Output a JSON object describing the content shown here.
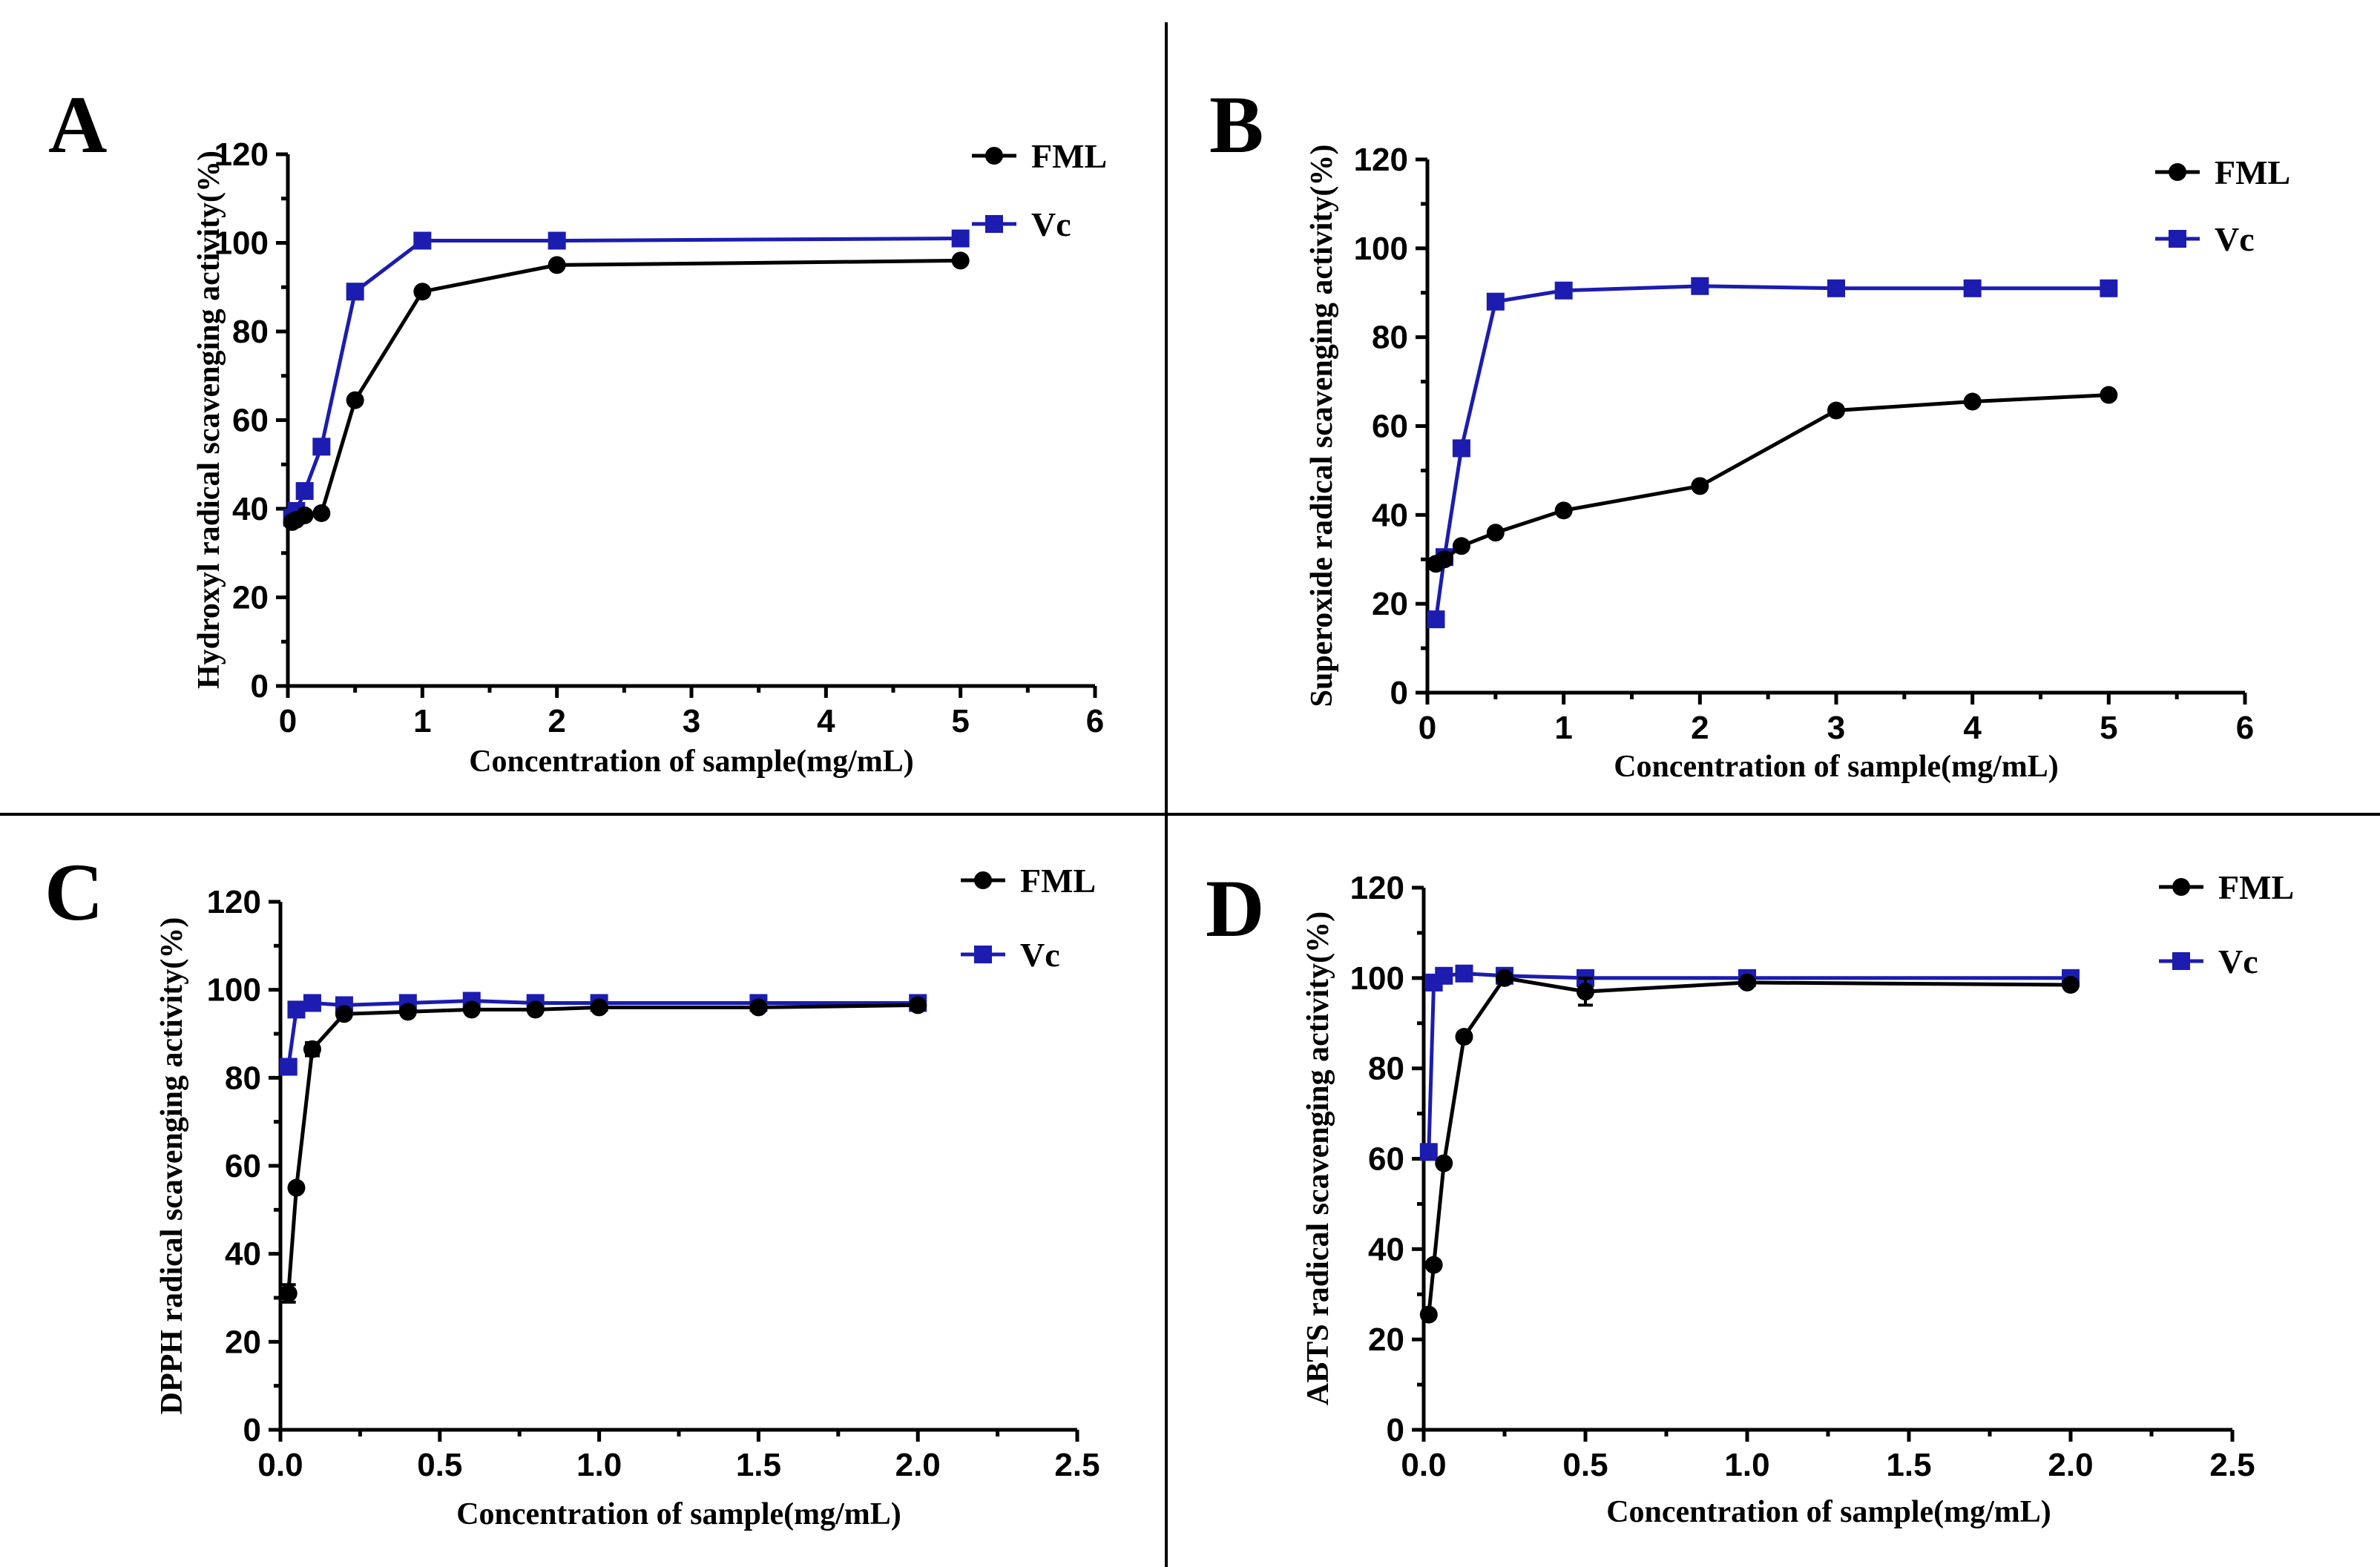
{
  "colors": {
    "fml": "#000000",
    "vc": "#1c1cb0"
  },
  "legend": {
    "fml": "FML",
    "vc": "Vc"
  },
  "chart_data": [
    {
      "panel": "A",
      "type": "line",
      "xlabel": "Concentration of sample(mg/mL)",
      "ylabel": "Hydroxyl radical scavenging activity(%)",
      "xlim": [
        0,
        6
      ],
      "ylim": [
        0,
        120
      ],
      "xticks": [
        0,
        1,
        2,
        3,
        4,
        5,
        6
      ],
      "xtick_labels": [
        "0",
        "1",
        "2",
        "3",
        "4",
        "5",
        "6"
      ],
      "yticks": [
        0,
        20,
        40,
        60,
        80,
        100,
        120
      ],
      "ytick_labels": [
        "0",
        "20",
        "40",
        "60",
        "80",
        "100",
        "120"
      ],
      "series": [
        {
          "name": "FML",
          "marker": "circle",
          "x": [
            0.03125,
            0.0625,
            0.125,
            0.25,
            0.5,
            1,
            2,
            5
          ],
          "y": [
            37,
            37.5,
            38.5,
            39,
            64.5,
            89,
            95,
            96
          ]
        },
        {
          "name": "Vc",
          "marker": "square",
          "x": [
            0.03125,
            0.0625,
            0.125,
            0.25,
            0.5,
            1,
            2,
            5
          ],
          "y": [
            38,
            39.5,
            44,
            54,
            89,
            100.5,
            100.5,
            101
          ]
        }
      ]
    },
    {
      "panel": "B",
      "type": "line",
      "xlabel": "Concentration of sample(mg/mL)",
      "ylabel": "Superoxide radical scavenging activity(%)",
      "xlim": [
        0,
        6
      ],
      "ylim": [
        0,
        120
      ],
      "xticks": [
        0,
        1,
        2,
        3,
        4,
        5,
        6
      ],
      "xtick_labels": [
        "0",
        "1",
        "2",
        "3",
        "4",
        "5",
        "6"
      ],
      "yticks": [
        0,
        20,
        40,
        60,
        80,
        100,
        120
      ],
      "ytick_labels": [
        "0",
        "20",
        "40",
        "60",
        "80",
        "100",
        "120"
      ],
      "series": [
        {
          "name": "FML",
          "marker": "circle",
          "x": [
            0.0625,
            0.125,
            0.25,
            0.5,
            1,
            2,
            3,
            4,
            5
          ],
          "y": [
            29,
            30,
            33,
            36,
            41,
            46.5,
            63.5,
            65.5,
            67
          ]
        },
        {
          "name": "Vc",
          "marker": "square",
          "x": [
            0.0625,
            0.125,
            0.25,
            0.5,
            1,
            2,
            3,
            4,
            5
          ],
          "y": [
            16.5,
            30.5,
            55,
            88,
            90.5,
            91.5,
            91,
            91,
            91
          ]
        }
      ]
    },
    {
      "panel": "C",
      "type": "line",
      "xlabel": "Concentration of sample(mg/mL)",
      "ylabel": "DPPH radical scavenging activity(%)",
      "xlim": [
        0,
        2.5
      ],
      "ylim": [
        0,
        120
      ],
      "xticks": [
        0,
        0.5,
        1,
        1.5,
        2,
        2.5
      ],
      "xtick_labels": [
        "0.0",
        "0.5",
        "1.0",
        "1.5",
        "2.0",
        "2.5"
      ],
      "yticks": [
        0,
        20,
        40,
        60,
        80,
        100,
        120
      ],
      "ytick_labels": [
        "0",
        "20",
        "40",
        "60",
        "80",
        "100",
        "120"
      ],
      "series": [
        {
          "name": "FML",
          "marker": "circle",
          "x": [
            0.025,
            0.05,
            0.1,
            0.2,
            0.4,
            0.6,
            0.8,
            1,
            1.5,
            2
          ],
          "y": [
            31,
            55,
            86.5,
            94.5,
            95,
            95.5,
            95.5,
            96,
            96,
            96.5
          ],
          "err": [
            2,
            0,
            1.5,
            0,
            0,
            0,
            0,
            0,
            0,
            0
          ]
        },
        {
          "name": "Vc",
          "marker": "square",
          "x": [
            0.025,
            0.05,
            0.1,
            0.2,
            0.4,
            0.6,
            0.8,
            1,
            1.5,
            2
          ],
          "y": [
            82.5,
            95.5,
            97,
            96.5,
            97,
            97.5,
            97,
            97,
            97,
            97
          ],
          "err": [
            0,
            0,
            0,
            0,
            0,
            0,
            0,
            0,
            0,
            0
          ]
        }
      ]
    },
    {
      "panel": "D",
      "type": "line",
      "xlabel": "Concentration of sample(mg/mL)",
      "ylabel": "ABTS radical scavenging activity(%)",
      "xlim": [
        0,
        2.5
      ],
      "ylim": [
        0,
        120
      ],
      "xticks": [
        0,
        0.5,
        1,
        1.5,
        2,
        2.5
      ],
      "xtick_labels": [
        "0.0",
        "0.5",
        "1.0",
        "1.5",
        "2.0",
        "2.5"
      ],
      "yticks": [
        0,
        20,
        40,
        60,
        80,
        100,
        120
      ],
      "ytick_labels": [
        "0",
        "20",
        "40",
        "60",
        "80",
        "100",
        "120"
      ],
      "series": [
        {
          "name": "FML",
          "marker": "circle",
          "x": [
            0.015625,
            0.03125,
            0.0625,
            0.125,
            0.25,
            0.5,
            1,
            2
          ],
          "y": [
            25.5,
            36.5,
            59,
            87,
            100,
            97,
            99,
            98.5
          ],
          "err": [
            0,
            0,
            0,
            0,
            0,
            3,
            0,
            0
          ]
        },
        {
          "name": "Vc",
          "marker": "square",
          "x": [
            0.015625,
            0.03125,
            0.0625,
            0.125,
            0.25,
            0.5,
            1,
            2
          ],
          "y": [
            61.5,
            99,
            100.5,
            101,
            100.5,
            100,
            100,
            100
          ],
          "err": [
            0,
            0,
            0,
            0,
            0,
            0,
            0,
            0
          ]
        }
      ]
    }
  ]
}
